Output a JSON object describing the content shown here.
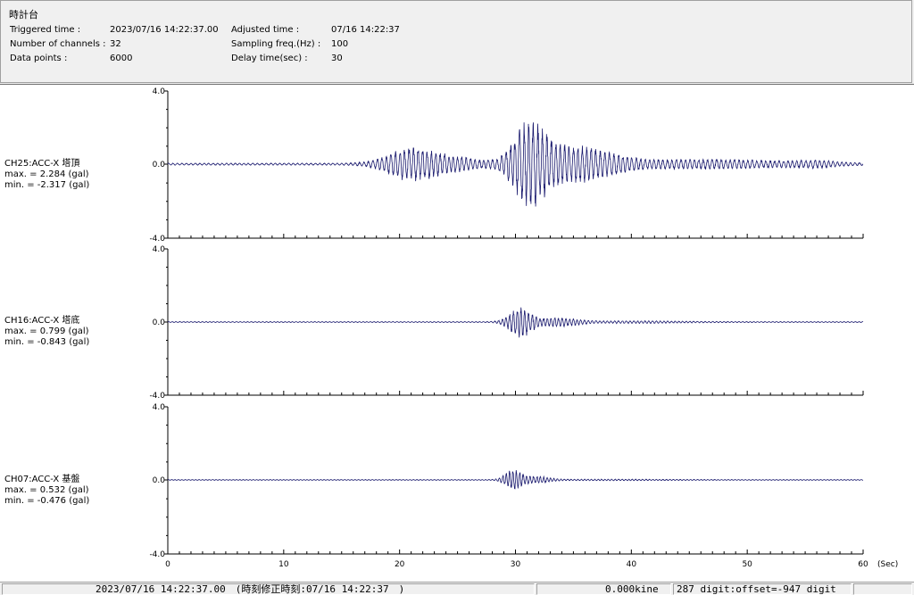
{
  "header": {
    "title": "時計台",
    "triggered_label": "Triggered time :",
    "triggered_value": "2023/07/16 14:22:37.00",
    "channels_label": "Number of channels :",
    "channels_value": "32",
    "points_label": "Data points :",
    "points_value": "6000",
    "adjusted_label": "Adjusted time :",
    "adjusted_value": "07/16 14:22:37",
    "sampling_label": "Sampling freq.(Hz) :",
    "sampling_value": "100",
    "delay_label": "Delay time(sec) :",
    "delay_value": "30"
  },
  "channels": [
    {
      "name": "CH25:ACC-X 塔頂",
      "max": "max. = 2.284 (gal)",
      "min": "min. = -2.317 (gal)"
    },
    {
      "name": "CH16:ACC-X 塔底",
      "max": "max. = 0.799 (gal)",
      "min": "min. = -0.843 (gal)"
    },
    {
      "name": "CH07:ACC-X 基盤",
      "max": "max. = 0.532 (gal)",
      "min": "min. = -0.476 (gal)"
    }
  ],
  "axis": {
    "y_top_label": "4.0",
    "y_mid_label": "0.0",
    "y_bot_label": "-4.0",
    "x_ticks": [
      "0",
      "10",
      "20",
      "30",
      "40",
      "50",
      "60"
    ],
    "x_unit": "(Sec)"
  },
  "statusbar": {
    "time": "2023/07/16 14:22:37.00　(時刻修正時刻:07/16 14:22:37　)",
    "velocity": "0.000kine",
    "digit": "287 digit:offset=-947 digit"
  },
  "chart_data": {
    "type": "line",
    "xlabel": "(Sec)",
    "xlim": [
      0,
      60
    ],
    "ylim": [
      -4.0,
      4.0
    ],
    "sampling_hz": 100,
    "series": [
      {
        "name": "CH25:ACC-X 塔頂",
        "max": 2.284,
        "min": -2.317,
        "unit": "gal"
      },
      {
        "name": "CH16:ACC-X 塔底",
        "max": 0.799,
        "min": -0.843,
        "unit": "gal"
      },
      {
        "name": "CH07:ACC-X 基盤",
        "max": 0.532,
        "min": -0.476,
        "unit": "gal"
      }
    ],
    "colors": {
      "trace": "#1a1a6e",
      "axis": "#000000"
    }
  }
}
